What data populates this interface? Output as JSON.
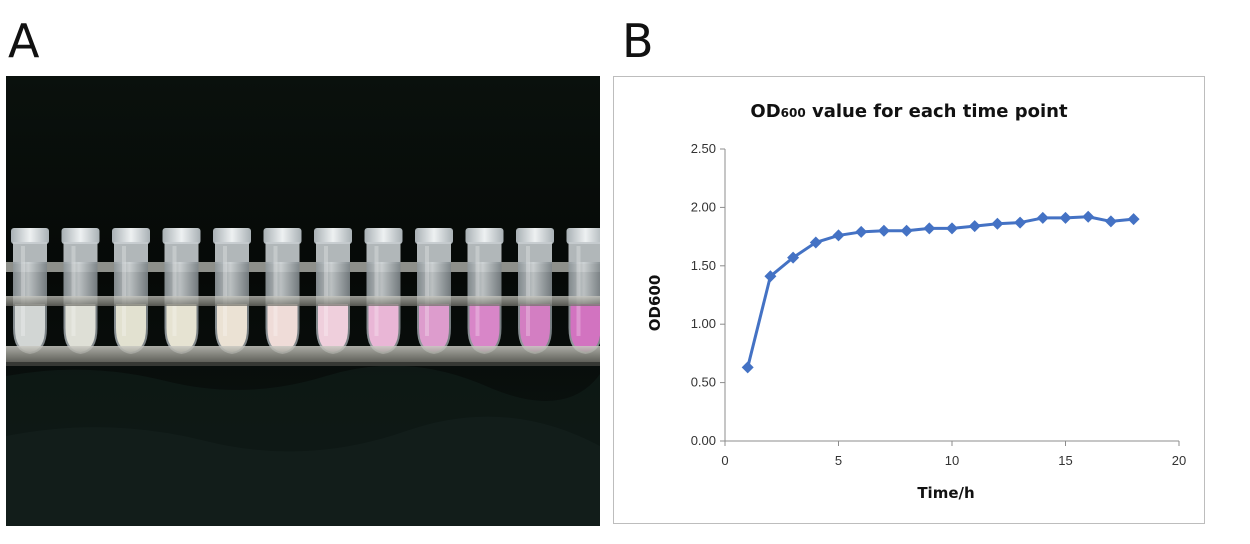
{
  "panels": {
    "a_label": "A",
    "b_label": "B"
  },
  "photo": {
    "tube_colors": [
      "#d2d6d4",
      "#dedfd6",
      "#e2e1d0",
      "#e6e3d2",
      "#ebe2d4",
      "#efdcd8",
      "#efcfdc",
      "#e9b6d6",
      "#dd9ccd",
      "#d886c8",
      "#d37ec2",
      "#d273c0"
    ]
  },
  "chart_data": {
    "type": "line",
    "title_main": "OD",
    "title_sub": "600",
    "title_rest": " value for each time point",
    "xlabel": "Time/h",
    "ylabel": "OD600",
    "xlim": [
      0,
      20
    ],
    "ylim": [
      0,
      2.5
    ],
    "xticks": [
      "0",
      "5",
      "10",
      "15",
      "20"
    ],
    "yticks": [
      "0.00",
      "0.50",
      "1.00",
      "1.50",
      "2.00",
      "2.50"
    ],
    "grid": false,
    "legend": "none",
    "marker": "diamond",
    "color": "#4472c4",
    "series": [
      {
        "x": [
          1,
          2,
          3,
          4,
          5,
          6,
          7,
          8,
          9,
          10,
          11,
          12,
          13,
          14,
          15,
          16,
          17,
          18
        ],
        "values": [
          0.63,
          1.41,
          1.57,
          1.7,
          1.76,
          1.79,
          1.8,
          1.8,
          1.82,
          1.82,
          1.84,
          1.86,
          1.87,
          1.91,
          1.91,
          1.92,
          1.88,
          1.9
        ]
      }
    ]
  }
}
